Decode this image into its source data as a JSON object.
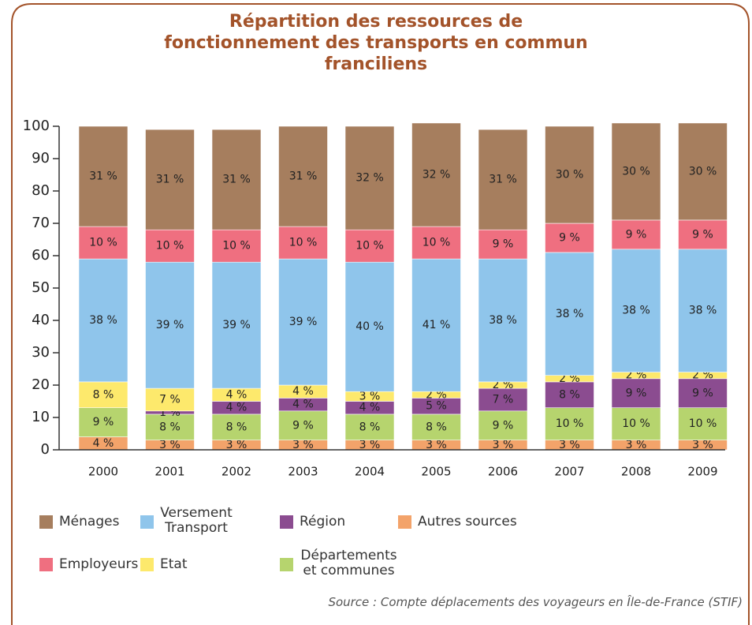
{
  "chart_data": {
    "type": "stacked_bar",
    "title": "Répartition des ressources de fonctionnement des transports en commun franciliens",
    "source": "Source : Compte déplacements des voyageurs en Île-de-France (STIF)",
    "categories": [
      "2000",
      "2001",
      "2002",
      "2003",
      "2004",
      "2005",
      "2006",
      "2007",
      "2008",
      "2009"
    ],
    "ylim": [
      0,
      100
    ],
    "yticks": [
      0,
      10,
      20,
      30,
      40,
      50,
      60,
      70,
      80,
      90,
      100
    ],
    "series": [
      {
        "name": "Autres sources",
        "color": "#f3a36a",
        "values": [
          4,
          3,
          3,
          3,
          3,
          3,
          3,
          3,
          3,
          3
        ],
        "value_labels": [
          "4 %",
          "3 %",
          "3 %",
          "3 %",
          "3 %",
          "3 %",
          "3 %",
          "3 %",
          "3 %",
          "3 %"
        ]
      },
      {
        "name": "Départements et communes",
        "color": "#b6d46e",
        "values": [
          9,
          8,
          8,
          9,
          8,
          8,
          9,
          10,
          10,
          10
        ],
        "value_labels": [
          "9 %",
          "8 %",
          "8 %",
          "9 %",
          "8 %",
          "8 %",
          "9 %",
          "10 %",
          "10 %",
          "10 %"
        ]
      },
      {
        "name": "Région",
        "color": "#8b4c90",
        "values": [
          0,
          1,
          4,
          4,
          4,
          5,
          7,
          8,
          9,
          9
        ],
        "value_labels": [
          null,
          "1 %",
          "4 %",
          "4 %",
          "4 %",
          "5 %",
          "7 %",
          "8 %",
          "9 %",
          "9 %"
        ]
      },
      {
        "name": "Etat",
        "color": "#fde96c",
        "values": [
          8,
          7,
          4,
          4,
          3,
          2,
          2,
          2,
          2,
          2
        ],
        "value_labels": [
          "8 %",
          "7 %",
          "4 %",
          "4 %",
          "3 %",
          "2 %",
          "2 %",
          "2 %",
          "2 %",
          "2 %"
        ]
      },
      {
        "name": "Versement Transport",
        "color": "#8fc5eb",
        "values": [
          38,
          39,
          39,
          39,
          40,
          41,
          38,
          38,
          38,
          38
        ],
        "value_labels": [
          "38 %",
          "39 %",
          "39 %",
          "39 %",
          "40 %",
          "41 %",
          "38 %",
          "38 %",
          "38 %",
          "38 %"
        ]
      },
      {
        "name": "Employeurs",
        "color": "#ef6f80",
        "values": [
          10,
          10,
          10,
          10,
          10,
          10,
          9,
          9,
          9,
          9
        ],
        "value_labels": [
          "10 %",
          "10 %",
          "10 %",
          "10 %",
          "10 %",
          "10 %",
          "9 %",
          "9 %",
          "9 %",
          "9 %"
        ]
      },
      {
        "name": "Ménages",
        "color": "#a67e5e",
        "values": [
          31,
          31,
          31,
          31,
          32,
          32,
          31,
          30,
          30,
          30
        ],
        "value_labels": [
          "31 %",
          "31 %",
          "31 %",
          "31 %",
          "32 %",
          "32 %",
          "31 %",
          "30 %",
          "30 %",
          "30 %"
        ]
      }
    ]
  }
}
